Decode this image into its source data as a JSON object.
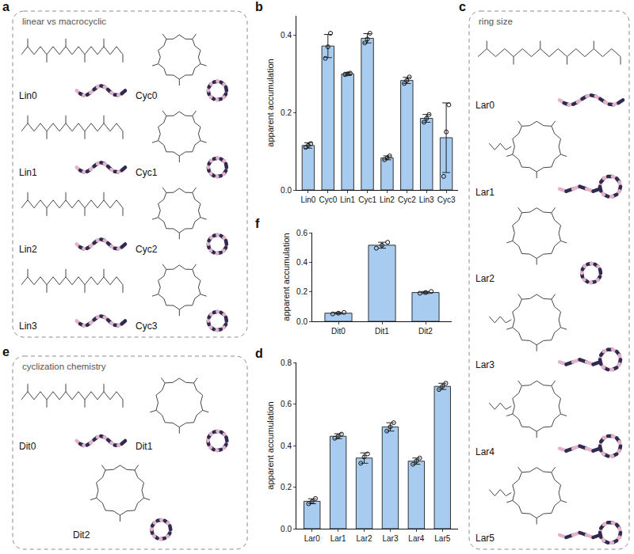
{
  "chart_data": [
    {
      "letter": "b",
      "type": "bar",
      "ylabel": "apparent accumulation",
      "categories": [
        "Lin0",
        "Cyc0",
        "Lin1",
        "Cyc1",
        "Lin2",
        "Cyc2",
        "Lin3",
        "Cyc3"
      ],
      "values": [
        0.115,
        0.372,
        0.3,
        0.392,
        0.083,
        0.283,
        0.185,
        0.135
      ],
      "errors": [
        0.007,
        0.03,
        0.004,
        0.012,
        0.005,
        0.008,
        0.01,
        0.09
      ],
      "points": [
        [
          0.11,
          0.115,
          0.12
        ],
        [
          0.34,
          0.37,
          0.405
        ],
        [
          0.298,
          0.3,
          0.302
        ],
        [
          0.38,
          0.39,
          0.405
        ],
        [
          0.078,
          0.083,
          0.088
        ],
        [
          0.275,
          0.283,
          0.292
        ],
        [
          0.175,
          0.185,
          0.195
        ],
        [
          0.035,
          0.15,
          0.22
        ]
      ],
      "color": "#a8ccf0",
      "ylim": [
        0,
        0.45
      ],
      "yticks": [
        {
          "value": 0,
          "label": "0.0"
        },
        0.2,
        0.4
      ],
      "grid": false
    },
    {
      "letter": "f",
      "type": "bar",
      "ylabel": "apparent accumulation",
      "categories": [
        "Dit0",
        "Dit1",
        "Dit2"
      ],
      "values": [
        0.055,
        0.515,
        0.195
      ],
      "errors": [
        0.005,
        0.02,
        0.007
      ],
      "points": [
        [
          0.05,
          0.055,
          0.06
        ],
        [
          0.495,
          0.515,
          0.535
        ],
        [
          0.19,
          0.195,
          0.202
        ]
      ],
      "color": "#a8ccf0",
      "ylim": [
        0,
        0.6
      ],
      "yticks": [
        {
          "value": 0,
          "label": "0.0"
        },
        0.2,
        0.4,
        0.6
      ],
      "grid": false
    },
    {
      "letter": "d",
      "type": "bar",
      "ylabel": "apparent accumulation",
      "categories": [
        "Lar0",
        "Lar1",
        "Lar2",
        "Lar3",
        "Lar4",
        "Lar5"
      ],
      "values": [
        0.132,
        0.445,
        0.34,
        0.49,
        0.325,
        0.685
      ],
      "errors": [
        0.012,
        0.012,
        0.025,
        0.02,
        0.015,
        0.015
      ],
      "points": [
        [
          0.12,
          0.13,
          0.145
        ],
        [
          0.435,
          0.445,
          0.455
        ],
        [
          0.315,
          0.345,
          0.36
        ],
        [
          0.47,
          0.49,
          0.51
        ],
        [
          0.31,
          0.325,
          0.34
        ],
        [
          0.67,
          0.685,
          0.7
        ]
      ],
      "color": "#a8ccf0",
      "ylim": [
        0,
        0.8
      ],
      "yticks": [
        {
          "value": 0,
          "label": "0.0"
        },
        0.2,
        0.4,
        0.6,
        0.8
      ],
      "grid": false
    }
  ],
  "diagrams": [
    {
      "letter": "a",
      "title": "linear vs macrocyclic",
      "compounds": [
        {
          "label": "Lin0",
          "shape": "linear"
        },
        {
          "label": "Cyc0",
          "shape": "cyclic"
        },
        {
          "label": "Lin1",
          "shape": "linear"
        },
        {
          "label": "Cyc1",
          "shape": "cyclic"
        },
        {
          "label": "Lin2",
          "shape": "linear"
        },
        {
          "label": "Cyc2",
          "shape": "cyclic"
        },
        {
          "label": "Lin3",
          "shape": "linear"
        },
        {
          "label": "Cyc3",
          "shape": "cyclic"
        }
      ]
    },
    {
      "letter": "c",
      "title": "ring size",
      "compounds": [
        {
          "label": "Lar0",
          "shape": "linear"
        },
        {
          "label": "Lar1",
          "shape": "lasso"
        },
        {
          "label": "Lar2",
          "shape": "cyclic"
        },
        {
          "label": "Lar3",
          "shape": "lasso"
        },
        {
          "label": "Lar4",
          "shape": "lasso"
        },
        {
          "label": "Lar5",
          "shape": "lasso"
        }
      ]
    },
    {
      "letter": "e",
      "title": "cyclization chemistry",
      "compounds": [
        {
          "label": "Dit0",
          "shape": "linear"
        },
        {
          "label": "Dit1",
          "shape": "cyclic"
        },
        {
          "label": "Dit2",
          "shape": "cyclic"
        }
      ]
    }
  ]
}
